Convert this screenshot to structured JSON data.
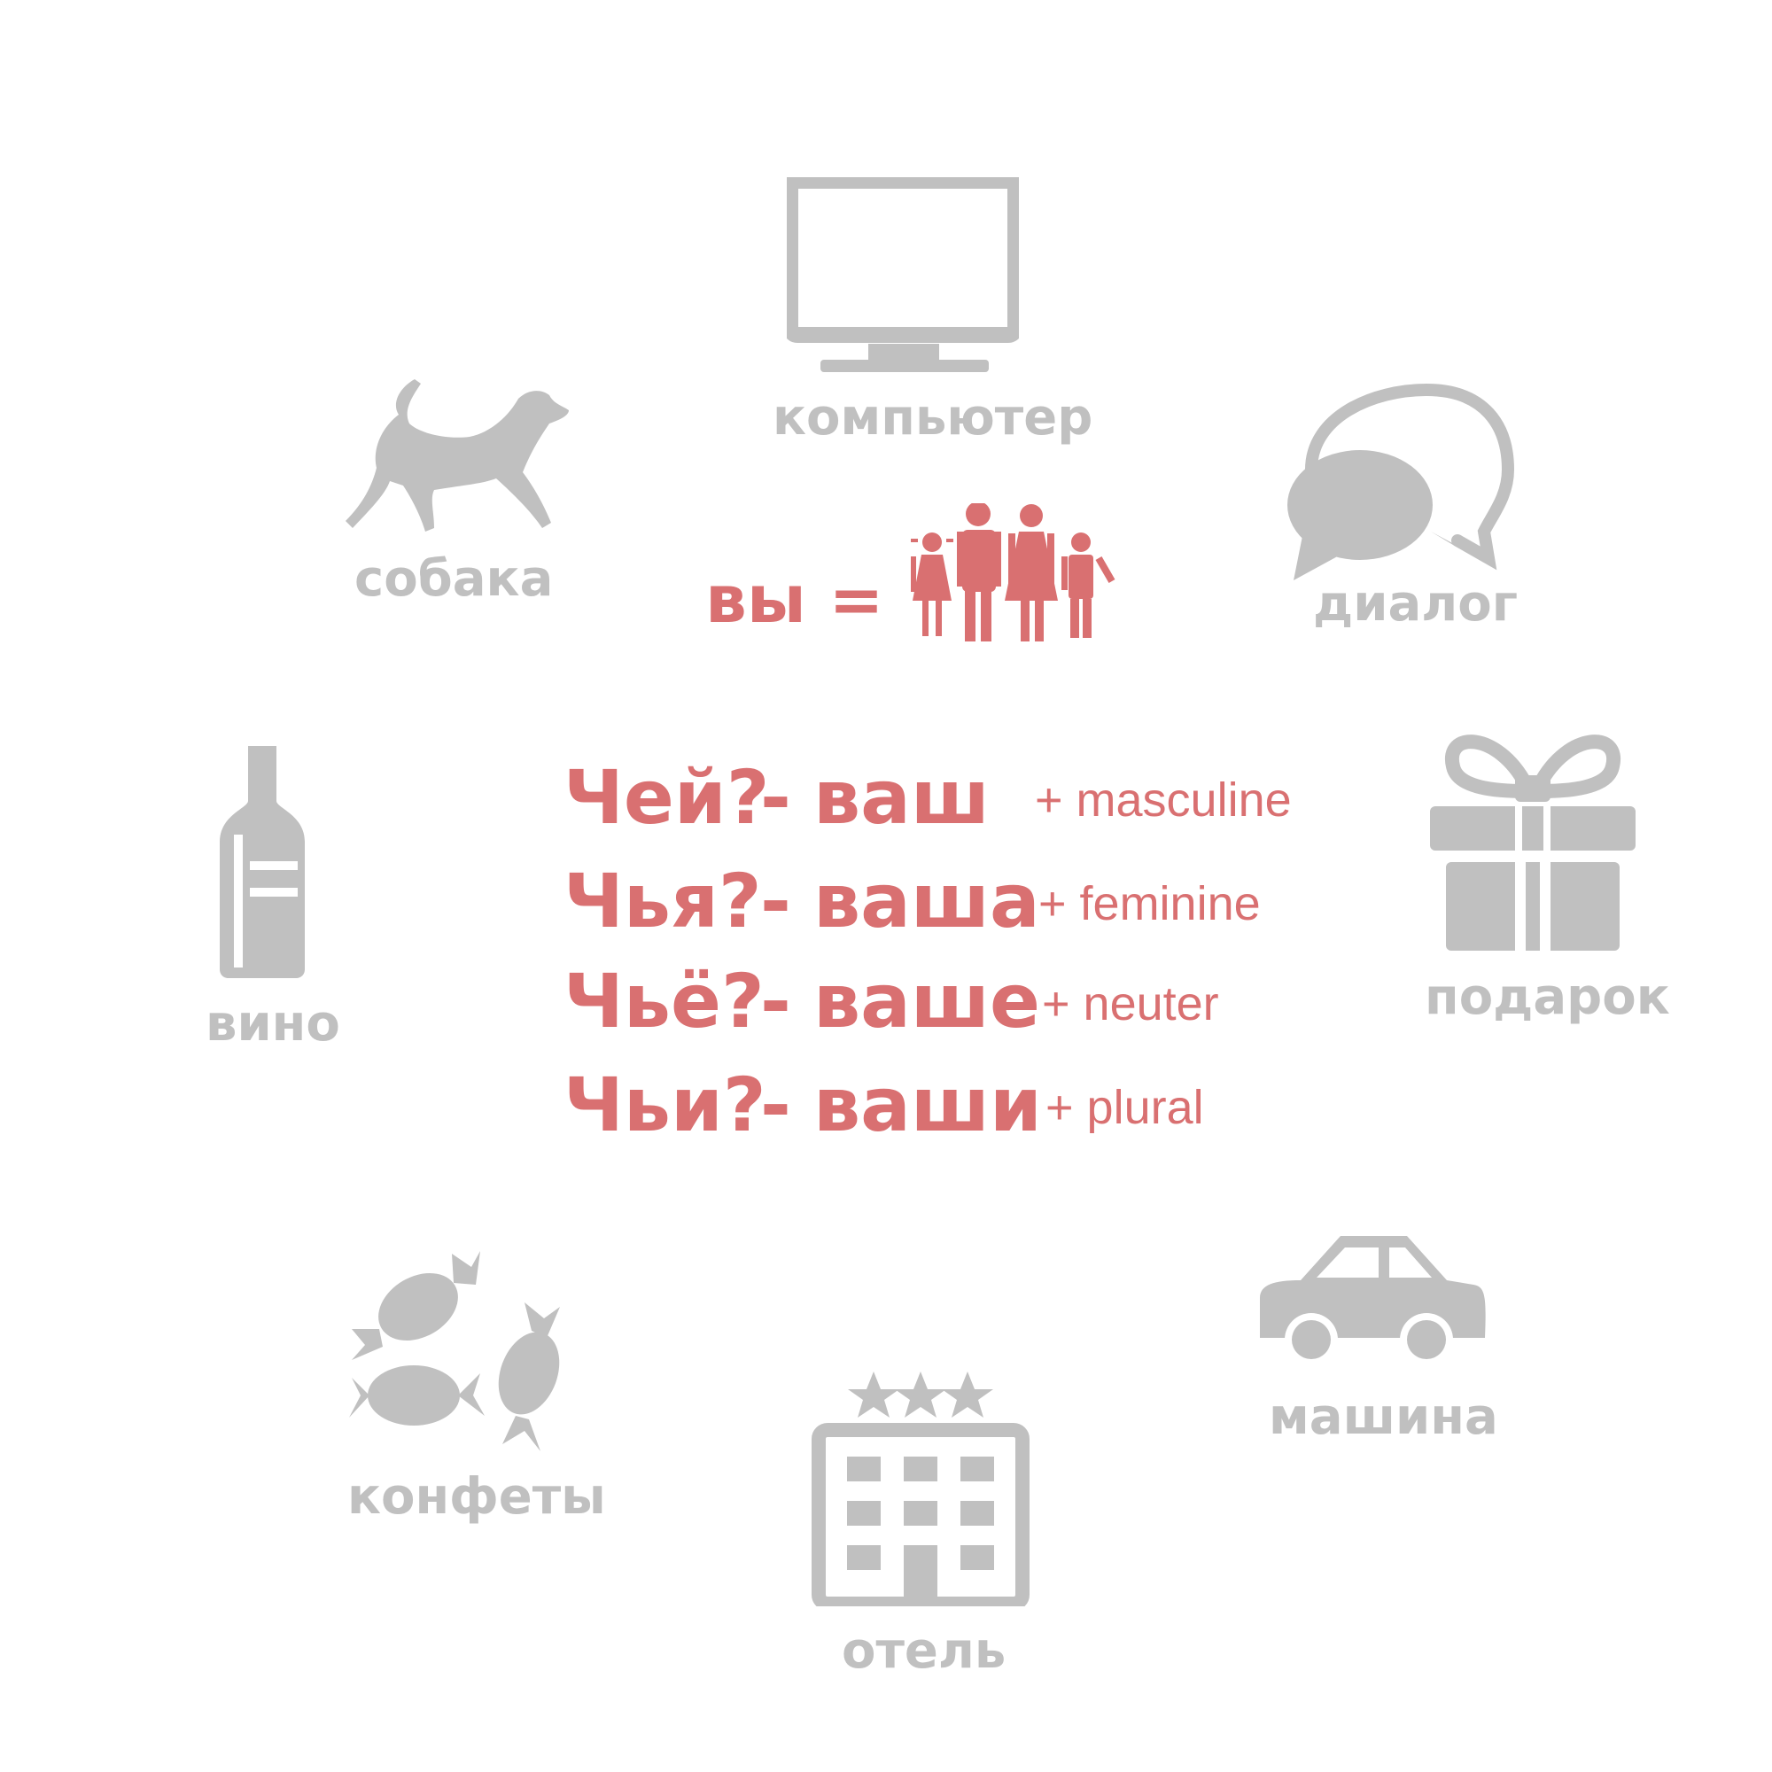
{
  "colors": {
    "icon_gray": "#c0c0c0",
    "accent_red": "#d97071",
    "background": "#ffffff"
  },
  "center": {
    "vy_label": "вы =",
    "people_icon": "family-icon"
  },
  "forms": [
    {
      "question": "Чей?",
      "dash": "-",
      "possessive": "ваш",
      "gender": "+ masculine"
    },
    {
      "question": "Чья?",
      "dash": "-",
      "possessive": "ваша",
      "gender": "+ feminine"
    },
    {
      "question": "Чьё?",
      "dash": "-",
      "possessive": "ваше",
      "gender": "+ neuter"
    },
    {
      "question": "Чьи?",
      "dash": "-",
      "possessive": "ваши",
      "gender": "+ plural"
    }
  ],
  "items": {
    "computer": {
      "label": "компьютер",
      "icon": "computer-icon"
    },
    "dialog": {
      "label": "диалог",
      "icon": "speech-bubbles-icon"
    },
    "gift": {
      "label": "подарок",
      "icon": "gift-icon"
    },
    "car": {
      "label": "машина",
      "icon": "car-icon"
    },
    "hotel": {
      "label": "отель",
      "icon": "hotel-icon"
    },
    "candy": {
      "label": "конфеты",
      "icon": "candy-icon"
    },
    "wine": {
      "label": "вино",
      "icon": "wine-bottle-icon"
    },
    "dog": {
      "label": "собака",
      "icon": "dog-icon"
    }
  }
}
